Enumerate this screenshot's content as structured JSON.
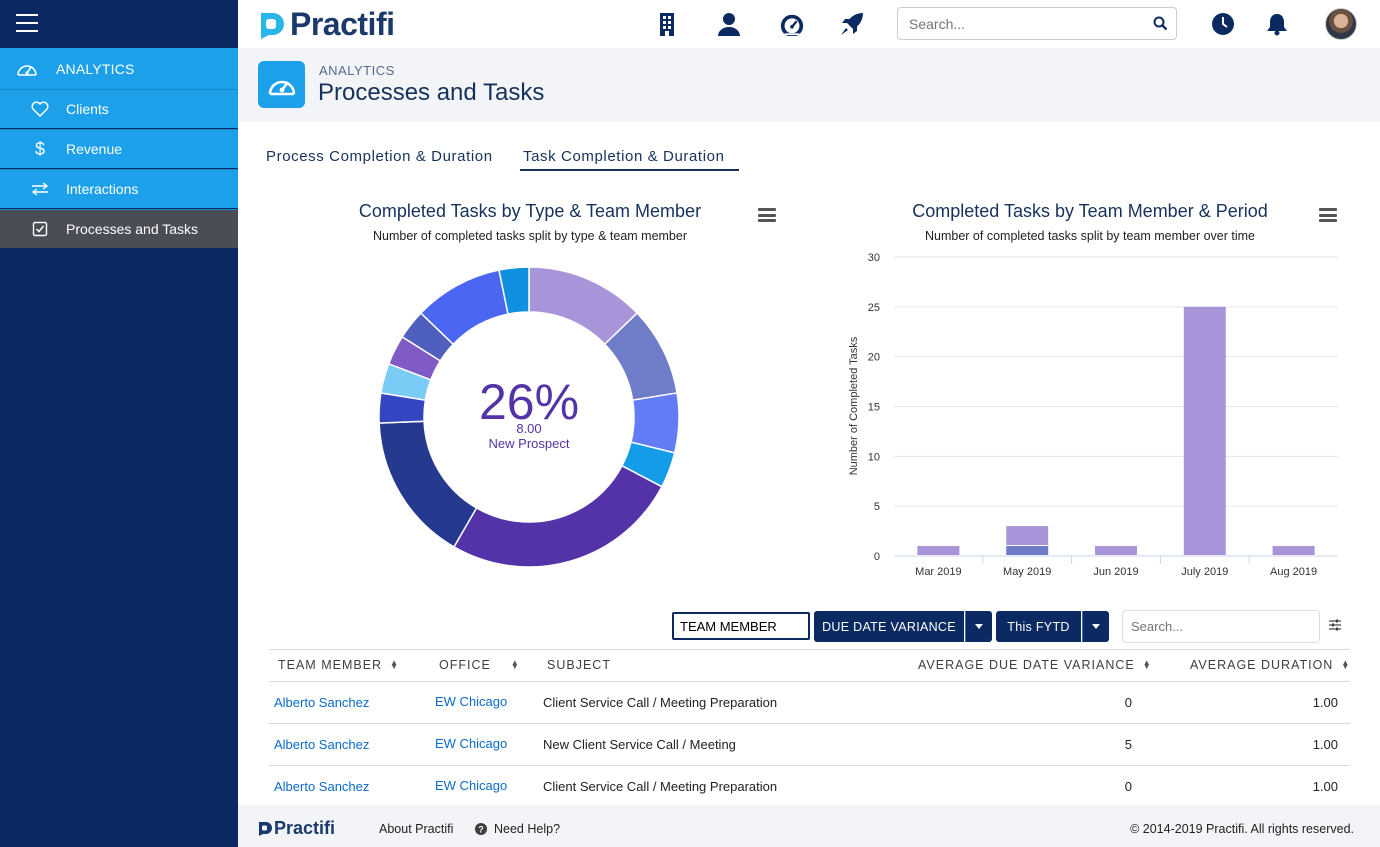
{
  "sidebar": {
    "top": {
      "label": "ANALYTICS",
      "icon": "dashboard-icon"
    },
    "items": [
      {
        "label": "Clients",
        "icon": "heart-icon"
      },
      {
        "label": "Revenue",
        "icon": "dollar-icon"
      },
      {
        "label": "Interactions",
        "icon": "arrows-icon"
      },
      {
        "label": "Processes and Tasks",
        "icon": "checkbox-icon"
      }
    ]
  },
  "header": {
    "logo": "Practifi",
    "search_placeholder": "Search..."
  },
  "page": {
    "supertitle": "ANALYTICS",
    "title": "Processes and Tasks"
  },
  "tabs": [
    {
      "label": "Process Completion & Duration"
    },
    {
      "label": "Task Completion & Duration"
    }
  ],
  "chart_data": [
    {
      "type": "pie",
      "title": "Completed Tasks by Type & Team Member",
      "subtitle": "Number of completed tasks split by type & team member",
      "center_label": {
        "percent": "26%",
        "value": "8.00",
        "name": "New Prospect"
      },
      "slices": [
        {
          "value": 4,
          "color": "#a895d9"
        },
        {
          "value": 3,
          "color": "#6f7cc8"
        },
        {
          "value": 2,
          "color": "#627cf5"
        },
        {
          "value": 1.2,
          "color": "#149ce8"
        },
        {
          "value": 8,
          "color": "#5433a8"
        },
        {
          "value": 5,
          "color": "#253a8f"
        },
        {
          "value": 1,
          "color": "#3346c2"
        },
        {
          "value": 1,
          "color": "#7acbf5"
        },
        {
          "value": 1,
          "color": "#805ac5"
        },
        {
          "value": 1,
          "color": "#4f5fbd"
        },
        {
          "value": 3,
          "color": "#4b66f0"
        },
        {
          "value": 1,
          "color": "#1290e0"
        }
      ]
    },
    {
      "type": "bar",
      "title": "Completed Tasks by Team Member & Period",
      "subtitle": "Number of completed tasks split by team member over time",
      "ylabel": "Number of Completed Tasks",
      "ylim": [
        0,
        30
      ],
      "yticks": [
        "0",
        "5",
        "10",
        "15",
        "20",
        "25",
        "30"
      ],
      "categories": [
        "Mar 2019",
        "May 2019",
        "Jun 2019",
        "July 2019",
        "Aug 2019"
      ],
      "series": [
        {
          "values": [
            0,
            1,
            0,
            0,
            0
          ],
          "color": "#6f7cc8"
        },
        {
          "values": [
            1,
            2,
            1,
            25,
            1
          ],
          "color": "#a895d9"
        }
      ]
    }
  ],
  "filters": {
    "team_member": "TEAM MEMBER",
    "due_date_variance": "DUE DATE VARIANCE",
    "period": "This FYTD",
    "table_search_placeholder": "Search..."
  },
  "table": {
    "headers": [
      "TEAM MEMBER",
      "OFFICE",
      "SUBJECT",
      "AVERAGE DUE DATE VARIANCE",
      "AVERAGE DURATION"
    ],
    "rows": [
      {
        "member": "Alberto Sanchez",
        "office": "EW Chicago",
        "subject": "Client Service Call / Meeting Preparation",
        "variance": "0",
        "duration": "1.00"
      },
      {
        "member": "Alberto Sanchez",
        "office": "EW Chicago",
        "subject": "New Client Service Call / Meeting",
        "variance": "5",
        "duration": "1.00"
      },
      {
        "member": "Alberto Sanchez",
        "office": "EW Chicago",
        "subject": "Client Service Call / Meeting Preparation",
        "variance": "0",
        "duration": "1.00"
      }
    ]
  },
  "footer": {
    "logo": "Practifi",
    "about": "About Practifi",
    "help": "Need Help?",
    "copyright": "© 2014-2019 Practifi. All rights reserved."
  },
  "colors": {
    "sidebar_bg": "#0b2a61",
    "sidebar_item": "#1ba0e9",
    "sidebar_active": "#4a4d55",
    "link": "#0b6bcb"
  }
}
